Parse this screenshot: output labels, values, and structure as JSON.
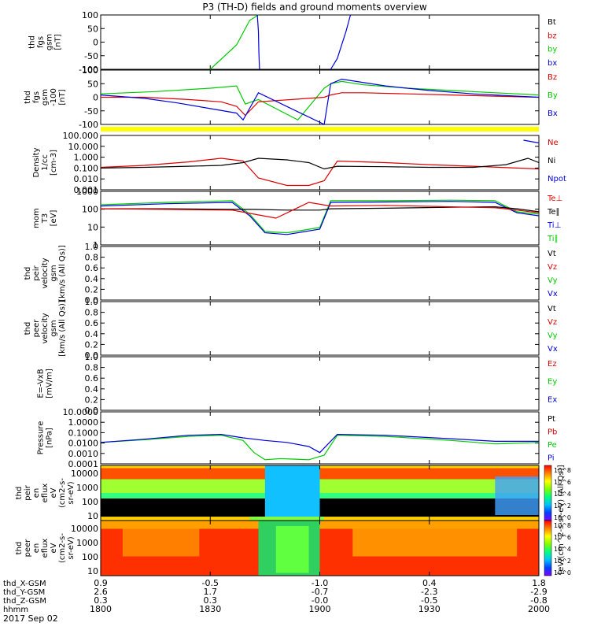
{
  "chart_data": {
    "type": "line",
    "title": "P3 (TH-D) fields and ground moments overview",
    "date": "2017 Sep 02",
    "x": {
      "ticks_hhmm": [
        "1800",
        "1830",
        "1900",
        "1930",
        "2000"
      ],
      "tick_hours": [
        18.0,
        18.5,
        19.0,
        19.5,
        20.0
      ],
      "range_hours": [
        18.0,
        20.0
      ],
      "ephemeris": [
        {
          "label": "thd_X-GSM",
          "values": [
            "0.9",
            "-0.5",
            "-1.0",
            "0.4",
            "1.8"
          ]
        },
        {
          "label": "thd_Y-GSM",
          "values": [
            "2.6",
            "1.7",
            "-0.7",
            "-2.3",
            "-2.9"
          ]
        },
        {
          "label": "thd_Z-GSM",
          "values": [
            "0.3",
            "0.3",
            "-0.0",
            "-0.5",
            "-0.8"
          ]
        },
        {
          "label": "hhmm",
          "values": [
            "1800",
            "1830",
            "1900",
            "1930",
            "2000"
          ]
        }
      ]
    },
    "panels": [
      {
        "id": "fgs",
        "ylabel": [
          "thd",
          "fgs",
          "gsm",
          "[nT]"
        ],
        "scale": "linear",
        "ylim": [
          -100,
          100
        ],
        "ticks": [
          "100",
          "50",
          "0",
          "-50",
          "-100"
        ],
        "legend": [
          {
            "t": "Bt",
            "c": "#000000"
          },
          {
            "t": "bz",
            "c": "#dd0000"
          },
          {
            "t": "by",
            "c": "#00cc00"
          },
          {
            "t": "bx",
            "c": "#0000dd"
          }
        ],
        "series": [
          {
            "name": "by",
            "color": "#00cc00",
            "x": [
              18.5,
              18.62,
              18.68,
              18.72
            ],
            "y": [
              -100,
              -10,
              80,
              100
            ]
          },
          {
            "name": "bx",
            "color": "#0000dd",
            "x": [
              18.715,
              18.72,
              18.722,
              18.725
            ],
            "y": [
              100,
              40,
              -40,
              -100
            ]
          },
          {
            "name": "bx",
            "color": "#0000dd",
            "x": [
              19.05,
              19.08,
              19.12,
              19.14
            ],
            "y": [
              -100,
              -60,
              40,
              100
            ]
          }
        ]
      },
      {
        "id": "fgs-100",
        "ylabel": [
          "thd",
          "fgs",
          "gsm",
          "-100",
          "[nT]"
        ],
        "scale": "linear",
        "ylim": [
          -120,
          120
        ],
        "ticks": [
          "100",
          "50",
          "0",
          "-50",
          "-100"
        ],
        "legend": [
          {
            "t": "Bz",
            "c": "#dd0000"
          },
          {
            "t": "By",
            "c": "#00cc00"
          },
          {
            "t": "Bx",
            "c": "#0000dd"
          }
        ],
        "series": [
          {
            "name": "By",
            "color": "#00cc00",
            "x": [
              18.0,
              18.25,
              18.5,
              18.62,
              18.66,
              18.72,
              18.9,
              19.02,
              19.05,
              19.1,
              19.2,
              19.4,
              19.6,
              19.8,
              20.0
            ],
            "y": [
              15,
              25,
              40,
              50,
              -30,
              -10,
              -100,
              40,
              60,
              70,
              55,
              40,
              30,
              20,
              10
            ]
          },
          {
            "name": "Bz",
            "color": "#dd0000",
            "x": [
              18.0,
              18.2,
              18.4,
              18.55,
              18.62,
              18.66,
              18.72,
              19.02,
              19.05,
              19.1,
              19.2,
              19.4,
              19.6,
              19.8,
              20.0
            ],
            "y": [
              0,
              0,
              -10,
              -20,
              -40,
              -80,
              -20,
              0,
              10,
              20,
              20,
              15,
              10,
              5,
              0
            ]
          },
          {
            "name": "Bx",
            "color": "#0000dd",
            "x": [
              18.0,
              18.2,
              18.35,
              18.5,
              18.62,
              18.65,
              18.72,
              19.02,
              19.05,
              19.1,
              19.3,
              19.5,
              19.7,
              19.9,
              20.0
            ],
            "y": [
              10,
              -5,
              -25,
              -50,
              -70,
              -100,
              20,
              -120,
              60,
              80,
              50,
              30,
              15,
              5,
              0
            ]
          }
        ]
      },
      {
        "id": "density",
        "ylabel": [
          "Density",
          "1/cc",
          "[cm-3]"
        ],
        "scale": "log",
        "ylim": [
          0.001,
          1000
        ],
        "ticks": [
          "100.000",
          "10.000",
          "1.000",
          "0.100",
          "0.010",
          "0.001"
        ],
        "legend": [
          {
            "t": "Ne",
            "c": "#dd0000"
          },
          {
            "t": "Ni",
            "c": "#000000"
          },
          {
            "t": "Npot",
            "c": "#0000dd"
          }
        ],
        "series": [
          {
            "name": "Ne",
            "color": "#dd0000",
            "x": [
              18.0,
              18.2,
              18.4,
              18.55,
              18.65,
              18.72,
              18.85,
              18.95,
              19.02,
              19.08,
              19.3,
              19.5,
              19.7,
              19.9,
              20.0
            ],
            "y": [
              0.3,
              0.5,
              1.2,
              3.0,
              1.5,
              0.02,
              0.003,
              0.003,
              0.01,
              1.5,
              1.0,
              0.6,
              0.4,
              0.25,
              0.2
            ]
          },
          {
            "name": "Ni",
            "color": "#000000",
            "x": [
              18.0,
              18.2,
              18.4,
              18.55,
              18.65,
              18.72,
              18.85,
              18.95,
              19.02,
              19.08,
              19.3,
              19.5,
              19.7,
              19.85,
              19.95,
              20.0
            ],
            "y": [
              0.25,
              0.3,
              0.4,
              0.5,
              1.0,
              3.0,
              2.0,
              1.0,
              0.2,
              0.4,
              0.35,
              0.3,
              0.3,
              0.6,
              3.0,
              1.0
            ]
          },
          {
            "name": "Npot",
            "color": "#0000dd",
            "x": [
              19.93,
              19.97,
              20.0
            ],
            "y": [
              300,
              200,
              150
            ]
          }
        ]
      },
      {
        "id": "moment-temp",
        "ylabel": [
          "mom",
          "T3",
          "[eV]"
        ],
        "scale": "log",
        "ylim": [
          1,
          10000
        ],
        "ticks": [
          "1000",
          "100",
          "10",
          "1"
        ],
        "legend": [
          {
            "t": "Te⊥",
            "c": "#dd0000"
          },
          {
            "t": "Te∥",
            "c": "#000000"
          },
          {
            "t": "Ti⊥",
            "c": "#0000dd"
          },
          {
            "t": "Ti∥",
            "c": "#00cc00"
          }
        ],
        "series": [
          {
            "name": "Ti∥",
            "color": "#00cc00",
            "x": [
              18.0,
              18.3,
              18.6,
              18.68,
              18.75,
              18.85,
              19.0,
              19.05,
              19.3,
              19.6,
              19.8,
              19.9,
              20.0
            ],
            "y": [
              1000,
              1500,
              2000,
              200,
              10,
              8,
              20,
              2000,
              2000,
              2200,
              2000,
              300,
              200
            ]
          },
          {
            "name": "Ti⊥",
            "color": "#0000dd",
            "x": [
              18.0,
              18.3,
              18.6,
              18.68,
              18.75,
              18.85,
              19.0,
              19.05,
              19.3,
              19.6,
              19.8,
              19.9,
              20.0
            ],
            "y": [
              800,
              1200,
              1500,
              150,
              8,
              6,
              15,
              1500,
              1600,
              1800,
              1500,
              250,
              150
            ]
          },
          {
            "name": "Te∥",
            "color": "#000000",
            "x": [
              18.0,
              18.3,
              18.6,
              18.7,
              18.85,
              19.0,
              19.05,
              19.3,
              19.6,
              19.8,
              19.9,
              20.0
            ],
            "y": [
              500,
              500,
              450,
              450,
              400,
              400,
              500,
              550,
              650,
              700,
              500,
              300
            ]
          },
          {
            "name": "Te⊥",
            "color": "#dd0000",
            "x": [
              18.0,
              18.3,
              18.6,
              18.7,
              18.8,
              18.95,
              19.05,
              19.3,
              19.6,
              19.8,
              19.9,
              20.0
            ],
            "y": [
              500,
              450,
              400,
              200,
              100,
              1500,
              800,
              900,
              700,
              600,
              400,
              250
            ]
          }
        ]
      },
      {
        "id": "peir-velocity",
        "ylabel": [
          "thd",
          "peir",
          "velocity",
          "gsm",
          "[km/s (All Qs)]"
        ],
        "scale": "linear",
        "ylim": [
          0,
          1
        ],
        "ticks": [
          "1.0",
          "0.8",
          "0.6",
          "0.4",
          "0.2",
          "0.0"
        ],
        "legend": [
          {
            "t": "Vt",
            "c": "#000000"
          },
          {
            "t": "Vz",
            "c": "#dd0000"
          },
          {
            "t": "Vy",
            "c": "#00cc00"
          },
          {
            "t": "Vx",
            "c": "#0000dd"
          }
        ],
        "series": []
      },
      {
        "id": "peer-velocity",
        "ylabel": [
          "thd",
          "peer",
          "velocity",
          "gsm",
          "[km/s (All Qs)]"
        ],
        "scale": "linear",
        "ylim": [
          0,
          1
        ],
        "ticks": [
          "1.0",
          "0.8",
          "0.6",
          "0.4",
          "0.2",
          "0.0"
        ],
        "legend": [
          {
            "t": "Vt",
            "c": "#000000"
          },
          {
            "t": "Vz",
            "c": "#dd0000"
          },
          {
            "t": "Vy",
            "c": "#00cc00"
          },
          {
            "t": "Vx",
            "c": "#0000dd"
          }
        ],
        "series": []
      },
      {
        "id": "efield",
        "ylabel": [
          "E=-VxB",
          "[mV/m]"
        ],
        "scale": "linear",
        "ylim": [
          0,
          1
        ],
        "ticks": [
          "1.0",
          "0.8",
          "0.6",
          "0.4",
          "0.2",
          "0.0"
        ],
        "legend": [
          {
            "t": "Ez",
            "c": "#dd0000"
          },
          {
            "t": "Ey",
            "c": "#00cc00"
          },
          {
            "t": "Ex",
            "c": "#0000dd"
          }
        ],
        "series": []
      },
      {
        "id": "pressure",
        "ylabel": [
          "Pressure",
          "[nPa]"
        ],
        "scale": "log",
        "ylim": [
          0.0001,
          100
        ],
        "ticks": [
          "10.0000",
          "1.0000",
          "0.1000",
          "0.0100",
          "0.0010",
          "0.0001"
        ],
        "legend": [
          {
            "t": "Pt",
            "c": "#000000"
          },
          {
            "t": "Pb",
            "c": "#dd0000"
          },
          {
            "t": "Pe",
            "c": "#00cc00"
          },
          {
            "t": "Pi",
            "c": "#0000dd"
          }
        ],
        "series": [
          {
            "name": "Pe",
            "color": "#00cc00",
            "x": [
              18.0,
              18.2,
              18.4,
              18.55,
              18.65,
              18.7,
              18.75,
              18.82,
              18.95,
              19.02,
              19.08,
              19.3,
              19.6,
              19.8,
              20.0
            ],
            "y": [
              0.03,
              0.06,
              0.15,
              0.2,
              0.05,
              0.002,
              0.0003,
              0.0004,
              0.0003,
              0.001,
              0.2,
              0.15,
              0.05,
              0.02,
              0.03
            ]
          },
          {
            "name": "Pi",
            "color": "#0000dd",
            "x": [
              18.0,
              18.2,
              18.4,
              18.55,
              18.65,
              18.75,
              18.85,
              18.95,
              19.0,
              19.08,
              19.3,
              19.6,
              19.8,
              20.0
            ],
            "y": [
              0.03,
              0.07,
              0.2,
              0.25,
              0.1,
              0.05,
              0.03,
              0.01,
              0.002,
              0.25,
              0.2,
              0.08,
              0.04,
              0.04
            ]
          }
        ]
      }
    ],
    "spectrograms": [
      {
        "id": "peir-en-eflux",
        "ylabel": [
          "thd",
          "peir",
          "en",
          "eflux",
          "eV",
          "(cm2-s-",
          "sr-eV)"
        ],
        "ticks": [
          "10000",
          "1000",
          "100",
          "10"
        ]
      },
      {
        "id": "peer-en-eflux",
        "ylabel": [
          "thd",
          "peer",
          "en",
          "eflux",
          "eV",
          "(cm2-s-",
          "sr-eV)"
        ],
        "ticks": [
          "10000",
          "1000",
          "100",
          "10"
        ]
      }
    ],
    "colorbar": {
      "label": "[eV/(cm^2-s-sr-eV) (All Qs)]",
      "ticks": [
        "10^8",
        "10^6",
        "10^4",
        "10^2",
        "10^0"
      ]
    }
  }
}
